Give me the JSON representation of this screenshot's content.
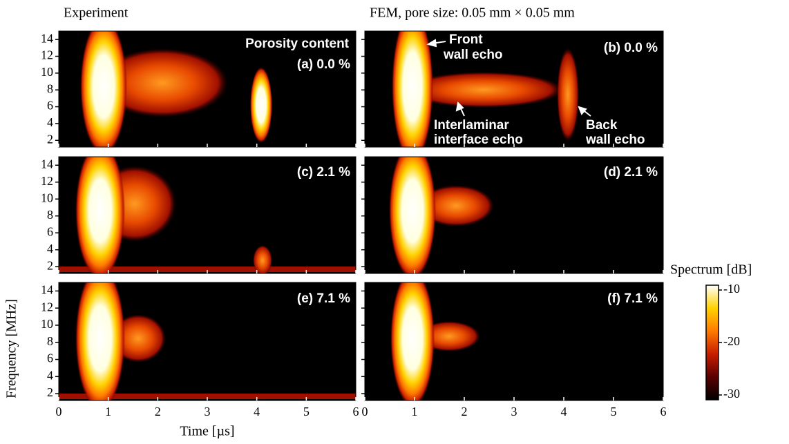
{
  "chart_data": [
    {
      "type": "heatmap",
      "title": "Experiment",
      "label": "(a) 0.0 %",
      "annotations": [
        "Porosity content"
      ],
      "xlim": [
        0,
        6
      ],
      "xticks": [
        0,
        1,
        2,
        3,
        4,
        5,
        6
      ],
      "ylim": [
        1.2,
        15
      ],
      "yticks": [
        2,
        4,
        6,
        8,
        10,
        12,
        14
      ]
    },
    {
      "type": "heatmap",
      "title": "FEM, pore size: 0.05 mm × 0.05 mm",
      "label": "(b) 0.0 %",
      "annotations": [
        "Front",
        "wall echo",
        "Interlaminar",
        "interface echo",
        "Back",
        "wall echo"
      ],
      "xlim": [
        0,
        6
      ],
      "xticks": [
        0,
        1,
        2,
        3,
        4,
        5,
        6
      ],
      "ylim": [
        1.2,
        15
      ],
      "yticks": [
        2,
        4,
        6,
        8,
        10,
        12,
        14
      ]
    },
    {
      "type": "heatmap",
      "label": "(c) 2.1 %",
      "xlim": [
        0,
        6
      ],
      "xticks": [
        0,
        1,
        2,
        3,
        4,
        5,
        6
      ],
      "ylim": [
        1.2,
        15
      ],
      "yticks": [
        2,
        4,
        6,
        8,
        10,
        12,
        14
      ]
    },
    {
      "type": "heatmap",
      "label": "(d) 2.1 %",
      "xlim": [
        0,
        6
      ],
      "xticks": [
        0,
        1,
        2,
        3,
        4,
        5,
        6
      ],
      "ylim": [
        1.2,
        15
      ],
      "yticks": [
        2,
        4,
        6,
        8,
        10,
        12,
        14
      ]
    },
    {
      "type": "heatmap",
      "label": "(e) 7.1 %",
      "xlabel": "Time [µs]",
      "ylabel": "Frequency [MHz]",
      "xlim": [
        0,
        6
      ],
      "xticks": [
        0,
        1,
        2,
        3,
        4,
        5,
        6
      ],
      "ylim": [
        1.2,
        15
      ],
      "yticks": [
        2,
        4,
        6,
        8,
        10,
        12,
        14
      ]
    },
    {
      "type": "heatmap",
      "label": "(f) 7.1 %",
      "xlim": [
        0,
        6
      ],
      "xticks": [
        0,
        1,
        2,
        3,
        4,
        5,
        6
      ],
      "ylim": [
        1.2,
        15
      ],
      "yticks": [
        2,
        4,
        6,
        8,
        10,
        12,
        14
      ]
    },
    {
      "type": "colorbar",
      "title": "Spectrum [dB]",
      "ylim": [
        -30,
        -10
      ],
      "yticks": [
        -10,
        -20,
        -30
      ],
      "colors": [
        "#000000",
        "#5a0000",
        "#c81e00",
        "#ff7a00",
        "#ffd200",
        "#ffffff"
      ]
    }
  ]
}
